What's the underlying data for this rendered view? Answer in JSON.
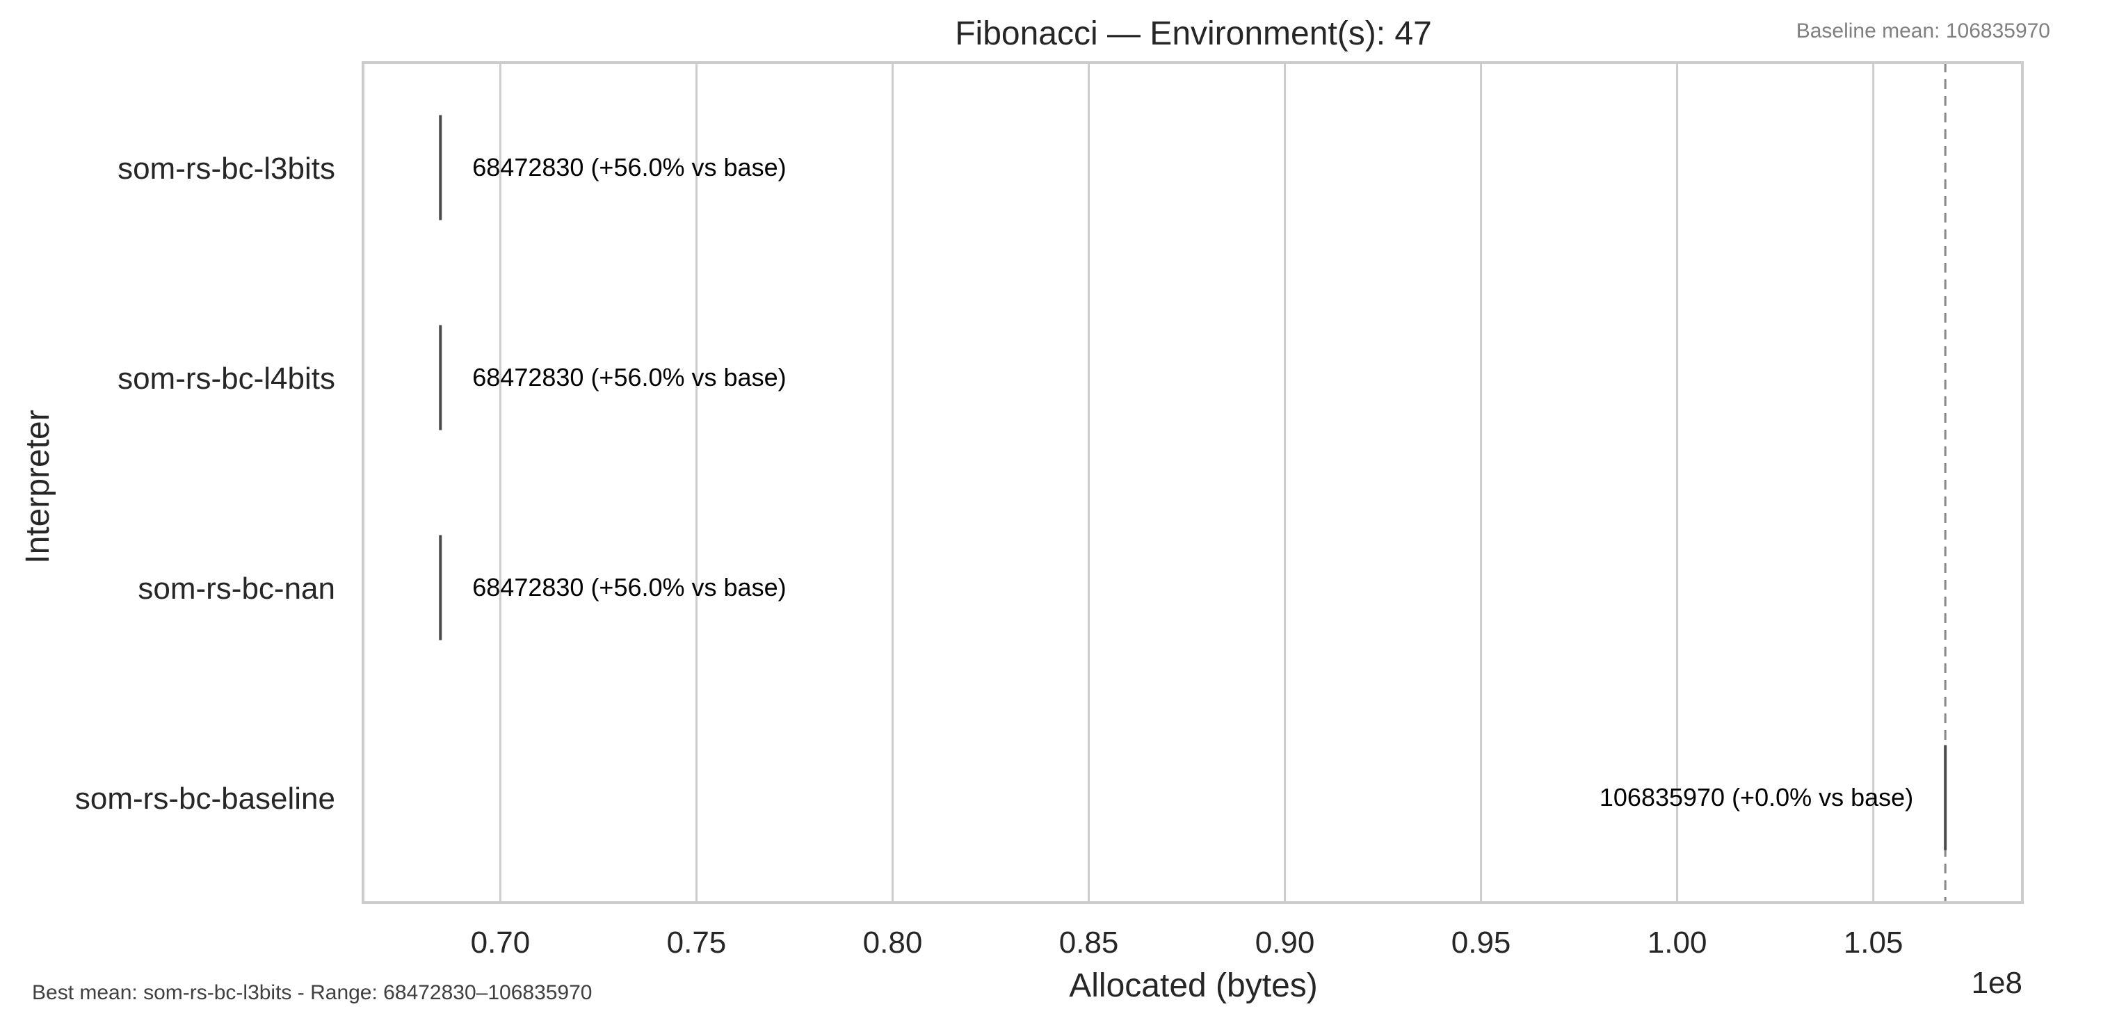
{
  "chart_data": {
    "type": "box",
    "orientation": "horizontal",
    "title": "Fibonacci — Environment(s): 47",
    "xlabel": "Allocated (bytes)",
    "ylabel": "Interpreter",
    "x_scale_label": "1e8",
    "xlim": [
      0.665,
      1.088
    ],
    "x_ticks": [
      0.7,
      0.75,
      0.8,
      0.85,
      0.9,
      0.95,
      1.0,
      1.05
    ],
    "x_tick_labels": [
      "0.70",
      "0.75",
      "0.80",
      "0.85",
      "0.90",
      "0.95",
      "1.00",
      "1.05"
    ],
    "grid": "vertical",
    "categories": [
      "som-rs-bc-l3bits",
      "som-rs-bc-l4bits",
      "som-rs-bc-nan",
      "som-rs-bc-baseline"
    ],
    "values": [
      68472830,
      68472830,
      68472830,
      106835970
    ],
    "value_labels": [
      "68472830  (+56.0% vs base)",
      "68472830  (+56.0% vs base)",
      "68472830  (+56.0% vs base)",
      "106835970  (+0.0% vs base)"
    ],
    "baseline": {
      "value": 106835970,
      "label": "Baseline mean: 106835970"
    },
    "footer_note": "Best mean: som-rs-bc-l3bits - Range: 68472830–106835970",
    "colors": {
      "box_line": "#4a4a4a",
      "grid": "#cccccc",
      "frame": "#cccccc",
      "baseline_line": "#888888",
      "text": "#262626",
      "annotation": "#000000",
      "muted_text": "#808080"
    }
  }
}
